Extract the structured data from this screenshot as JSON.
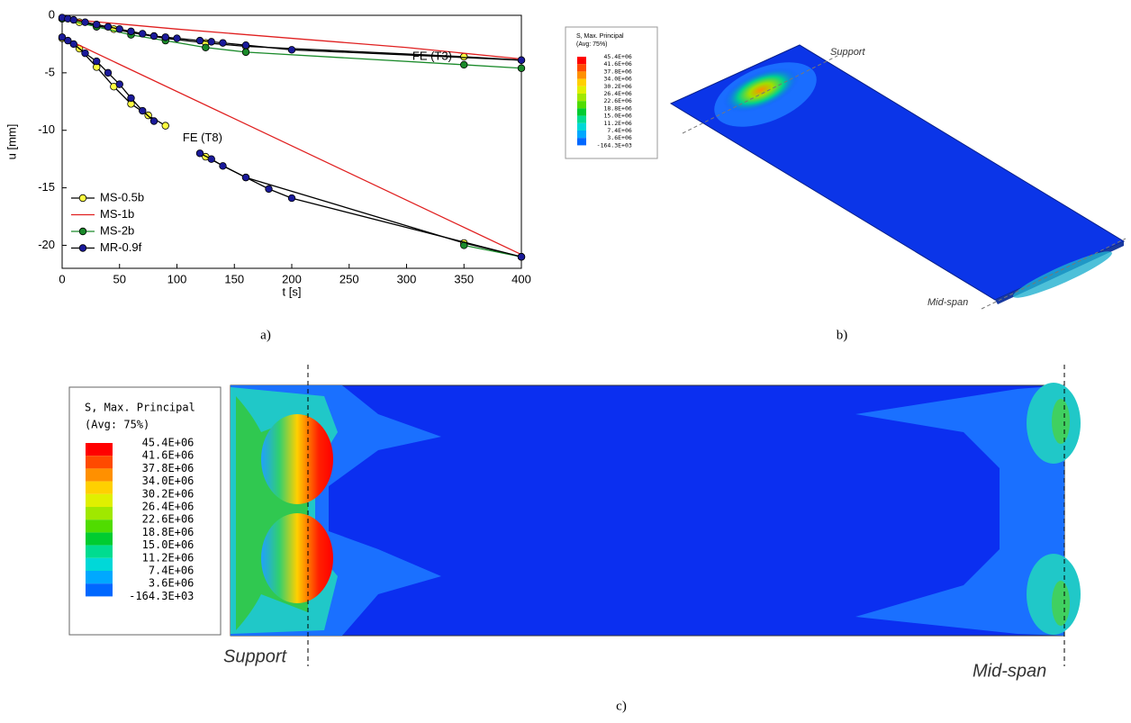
{
  "chart_data": {
    "type": "line",
    "xlabel": "t  [s]",
    "ylabel": "u  [mm]",
    "xlim": [
      0,
      400
    ],
    "xticks": [
      0,
      50,
      100,
      150,
      200,
      250,
      300,
      350,
      400
    ],
    "ylim": [
      -22,
      0
    ],
    "yticks": [
      0,
      -5,
      -10,
      -15,
      -20
    ],
    "legend": "lower left",
    "annotations": [
      {
        "text": "FE (T3)",
        "x": 305,
        "y": -3.6
      },
      {
        "text": "FE (T8)",
        "x": 105,
        "y": -10.7
      }
    ],
    "series": [
      {
        "name": "MS-0.5b",
        "color": "#ffff40",
        "line_color": "#000000",
        "marker": true,
        "x": [
          0,
          15,
          30,
          45,
          60,
          90,
          125,
          160,
          350,
          400,
          null,
          0,
          15,
          30,
          45,
          60,
          75,
          90,
          null,
          125,
          160,
          350,
          400
        ],
        "values": [
          -0.3,
          -0.6,
          -0.9,
          -1.2,
          -1.5,
          -2.0,
          -2.4,
          -2.7,
          -3.6,
          -3.9,
          null,
          -2.0,
          -2.9,
          -4.5,
          -6.2,
          -7.7,
          -8.7,
          -9.6,
          null,
          -12.3,
          -14.1,
          -19.8,
          -21.0
        ]
      },
      {
        "name": "MS-1b",
        "color": "#e02020",
        "line_color": "#e02020",
        "marker": false,
        "x": [
          0,
          100,
          200,
          300,
          400,
          null,
          0,
          400
        ],
        "values": [
          -0.3,
          -1.2,
          -2.0,
          -2.8,
          -3.8,
          null,
          -1.9,
          -20.8
        ]
      },
      {
        "name": "MS-2b",
        "color": "#1a8a2a",
        "line_color": "#1a8a2a",
        "marker": true,
        "x": [
          0,
          30,
          60,
          90,
          125,
          160,
          350,
          400,
          null,
          350,
          400
        ],
        "values": [
          -0.3,
          -1.0,
          -1.7,
          -2.2,
          -2.8,
          -3.2,
          -4.3,
          -4.6,
          null,
          -20.0,
          -21.0
        ]
      },
      {
        "name": "MR-0.9f",
        "color": "#1a1a9a",
        "line_color": "#000000",
        "marker": true,
        "x": [
          0,
          5,
          10,
          20,
          30,
          40,
          50,
          60,
          70,
          80,
          90,
          100,
          120,
          130,
          140,
          160,
          200,
          400,
          null,
          0,
          5,
          10,
          20,
          30,
          40,
          50,
          60,
          70,
          80,
          null,
          120,
          130,
          140,
          160,
          180,
          200,
          400
        ],
        "values": [
          -0.2,
          -0.3,
          -0.4,
          -0.6,
          -0.8,
          -1.0,
          -1.2,
          -1.4,
          -1.6,
          -1.8,
          -1.9,
          -2.0,
          -2.2,
          -2.3,
          -2.4,
          -2.6,
          -3.0,
          -3.9,
          null,
          -1.9,
          -2.2,
          -2.5,
          -3.3,
          -4.0,
          -5.0,
          -6.0,
          -7.2,
          -8.3,
          -9.2,
          null,
          -12.0,
          -12.5,
          -13.1,
          -14.1,
          -15.1,
          -15.9,
          -21.0
        ]
      }
    ]
  },
  "panel_a": {
    "caption": "a)"
  },
  "panel_b": {
    "caption": "b)",
    "legend_title": "S, Max. Principal",
    "legend_subtitle": "(Avg: 75%)",
    "legend_values": [
      "45.4E+06",
      "41.6E+06",
      "37.8E+06",
      "34.0E+06",
      "30.2E+06",
      "26.4E+06",
      "22.6E+06",
      "18.8E+06",
      "15.0E+06",
      "11.2E+06",
      "7.4E+06",
      "3.6E+06",
      "-164.3E+03"
    ],
    "support_label": "Support",
    "midspan_label": "Mid-span"
  },
  "panel_c": {
    "caption": "c)",
    "legend_title": "S, Max. Principal",
    "legend_subtitle": "(Avg: 75%)",
    "legend_values": [
      "45.4E+06",
      "41.6E+06",
      "37.8E+06",
      "34.0E+06",
      "30.2E+06",
      "26.4E+06",
      "22.6E+06",
      "18.8E+06",
      "15.0E+06",
      "11.2E+06",
      "7.4E+06",
      "3.6E+06",
      "-164.3E+03"
    ],
    "support_label": "Support",
    "midspan_label": "Mid-span"
  }
}
